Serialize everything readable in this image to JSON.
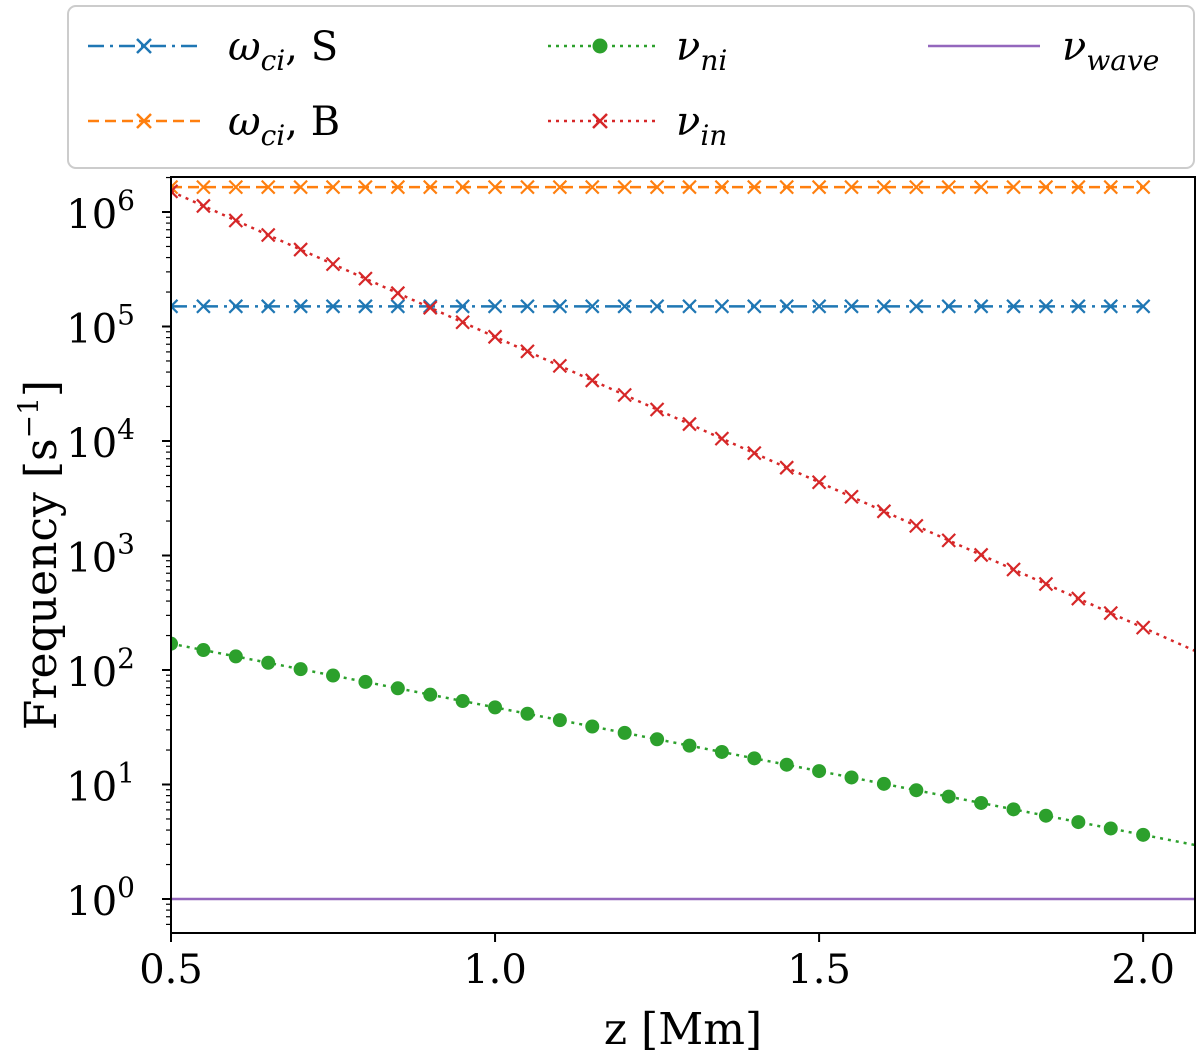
{
  "chart_data": {
    "type": "line",
    "title": "",
    "xlabel": "z [Mm]",
    "ylabel": "Frequency [s",
    "ylabel_sup": "−1",
    "ylabel_close": "]",
    "yscale": "log",
    "xlim": [
      0.5,
      2.08
    ],
    "ylim": [
      0.5,
      3500000
    ],
    "xticks": [
      0.5,
      1.0,
      1.5,
      2.0
    ],
    "xtick_labels": [
      "0.5",
      "1.0",
      "1.5",
      "2.0"
    ],
    "ytick_exponents": [
      "0",
      "1",
      "2",
      "3",
      "4",
      "5",
      "6"
    ],
    "ytick_base": "10",
    "grid": false,
    "legend_position": "top (above plot)",
    "series": [
      {
        "name": "ω_ci, S",
        "sym": "ω",
        "sub": "ci",
        "suffix": ", S",
        "color": "#1f77b4",
        "linestyle": "dashdot",
        "marker": "x",
        "x_start": 0.5,
        "x_step": 0.05,
        "n_markers": 31,
        "x_end": 2.0,
        "value": 150000
      },
      {
        "name": "ω_ci, B",
        "sym": "ω",
        "sub": "ci",
        "suffix": ", B",
        "color": "#ff7f0e",
        "linestyle": "dashed",
        "marker": "x",
        "x_start": 0.5,
        "x_step": 0.05,
        "n_markers": 31,
        "x_end": 2.0,
        "value": 1650000
      },
      {
        "name": "ν_ni",
        "sym": "ν",
        "sub": "ni",
        "suffix": "",
        "color": "#2ca02c",
        "linestyle": "dotted",
        "marker": "o",
        "x_start": 0.5,
        "x_step": 0.05,
        "n_markers": 31,
        "x_end": 2.08,
        "log10_start": 2.23,
        "log10_slope": -1.113
      },
      {
        "name": "ν_in",
        "sym": "ν",
        "sub": "in",
        "suffix": "",
        "color": "#d62728",
        "linestyle": "dotted",
        "marker": "x",
        "x_start": 0.5,
        "x_step": 0.05,
        "n_markers": 31,
        "x_end": 2.08,
        "log10_start": 6.18,
        "log10_slope": -2.54
      },
      {
        "name": "ν_wave",
        "sym": "ν",
        "sub": "wave",
        "suffix": "",
        "color": "#9467bd",
        "linestyle": "solid",
        "marker": "none",
        "x_start": 0.5,
        "x_end": 2.08,
        "value": 1
      }
    ]
  }
}
